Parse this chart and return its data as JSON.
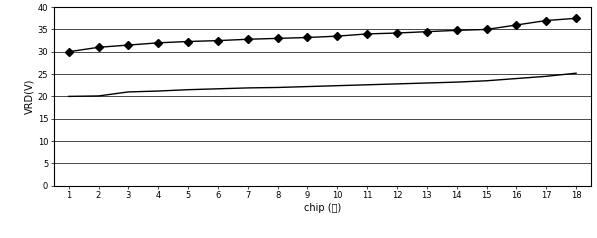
{
  "x": [
    1,
    2,
    3,
    4,
    5,
    6,
    7,
    8,
    9,
    10,
    11,
    12,
    13,
    14,
    15,
    16,
    17,
    18
  ],
  "upper_line": [
    30.0,
    31.0,
    31.5,
    32.0,
    32.3,
    32.5,
    32.8,
    33.0,
    33.2,
    33.5,
    34.0,
    34.2,
    34.5,
    34.8,
    35.0,
    36.0,
    37.0,
    37.5
  ],
  "lower_line": [
    20.0,
    20.1,
    21.0,
    21.2,
    21.5,
    21.7,
    21.9,
    22.0,
    22.2,
    22.4,
    22.6,
    22.8,
    23.0,
    23.2,
    23.5,
    24.0,
    24.5,
    25.2
  ],
  "ylabel": "VRD(V)",
  "xlabel": "chip (片)",
  "ylim": [
    0,
    40
  ],
  "yticks": [
    0,
    5,
    10,
    15,
    20,
    25,
    30,
    35,
    40
  ],
  "xticks": [
    1,
    2,
    3,
    4,
    5,
    6,
    7,
    8,
    9,
    10,
    11,
    12,
    13,
    14,
    15,
    16,
    17,
    18
  ],
  "line_color": "#000000",
  "bg_color": "#ffffff",
  "grid_color": "#000000",
  "tick_fontsize": 6,
  "label_fontsize": 7,
  "marker_size": 4,
  "line_width": 1.0
}
